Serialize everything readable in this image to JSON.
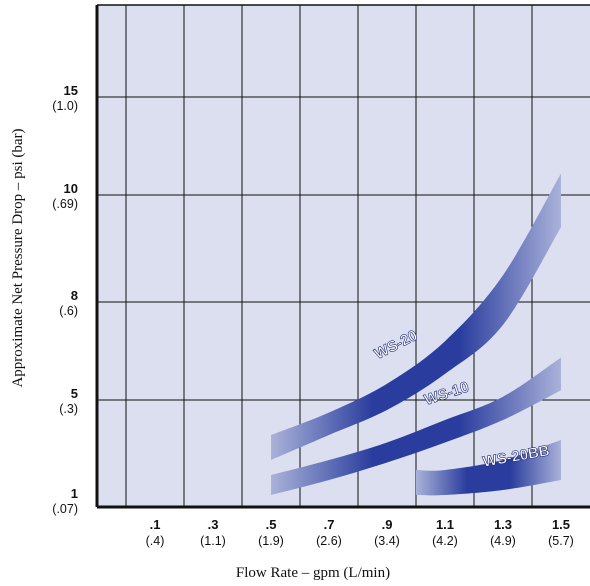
{
  "chart_data": {
    "type": "area",
    "xlabel": "Flow Rate – gpm (L/min)",
    "ylabel": "Approximate Net Pressure Drop – psi (bar)",
    "x_ticks": [
      {
        "value": 0.1,
        "main": ".1",
        "sub": "(.4)"
      },
      {
        "value": 0.3,
        "main": ".3",
        "sub": "(1.1)"
      },
      {
        "value": 0.5,
        "main": ".5",
        "sub": "(1.9)"
      },
      {
        "value": 0.7,
        "main": ".7",
        "sub": "(2.6)"
      },
      {
        "value": 0.9,
        "main": ".9",
        "sub": "(3.4)"
      },
      {
        "value": 1.1,
        "main": "1.1",
        "sub": "(4.2)"
      },
      {
        "value": 1.3,
        "main": "1.3",
        "sub": "(4.9)"
      },
      {
        "value": 1.5,
        "main": "1.5",
        "sub": "(5.7)"
      }
    ],
    "y_ticks": [
      {
        "value": 1,
        "main": "1",
        "sub": "(.07)"
      },
      {
        "value": 5,
        "main": "5",
        "sub": "(.3)"
      },
      {
        "value": 8,
        "main": "8",
        "sub": "(.6)"
      },
      {
        "value": 10,
        "main": "10",
        "sub": "(.69)"
      },
      {
        "value": 15,
        "main": "15",
        "sub": "(1.0)"
      }
    ],
    "xlim": [
      -0.1,
      1.6
    ],
    "grid": true,
    "colors": {
      "plot_bg": "#dcdff0",
      "band_dark": "#2a3d9e",
      "band_light": "#aab2d9",
      "grid": "#111111"
    },
    "series": [
      {
        "name": "WS-20",
        "x": [
          0.5,
          0.7,
          0.9,
          1.1,
          1.3,
          1.5
        ],
        "y_low": [
          2.6,
          3.6,
          4.6,
          5.8,
          7.3,
          9.4
        ],
        "y_high": [
          3.6,
          4.5,
          5.5,
          6.8,
          8.5,
          11.1
        ]
      },
      {
        "name": "WS-10",
        "x": [
          0.5,
          0.7,
          0.9,
          1.1,
          1.3,
          1.5
        ],
        "y_low": [
          1.2,
          1.8,
          2.5,
          3.3,
          4.2,
          5.3
        ],
        "y_high": [
          2.0,
          2.6,
          3.3,
          4.2,
          5.1,
          6.3
        ]
      },
      {
        "name": "WS-20BB",
        "x": [
          1.0,
          1.1,
          1.3,
          1.5
        ],
        "y_low": [
          1.2,
          1.2,
          1.4,
          1.8
        ],
        "y_high": [
          2.2,
          2.2,
          2.6,
          3.4
        ]
      }
    ]
  }
}
